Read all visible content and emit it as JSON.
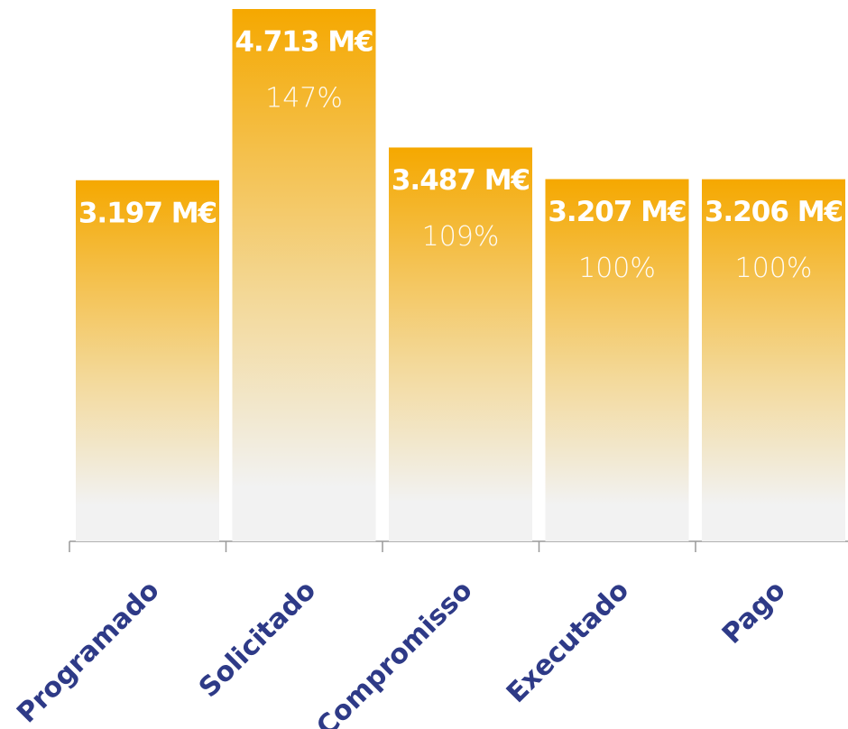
{
  "chart_data": {
    "type": "bar",
    "categories": [
      "Programado",
      "Solicitado",
      "Compromisso",
      "Executado",
      "Pago"
    ],
    "values": [
      3197,
      4713,
      3487,
      3207,
      3206
    ],
    "value_labels": [
      "3.197 M€",
      "4.713 M€",
      "3.487 M€",
      "3.207 M€",
      "3.206 M€"
    ],
    "shares": [
      null,
      147,
      109,
      100,
      100
    ],
    "share_labels": [
      null,
      "147%",
      "109%",
      "100%",
      "100%"
    ],
    "color": "#f5a800"
  }
}
